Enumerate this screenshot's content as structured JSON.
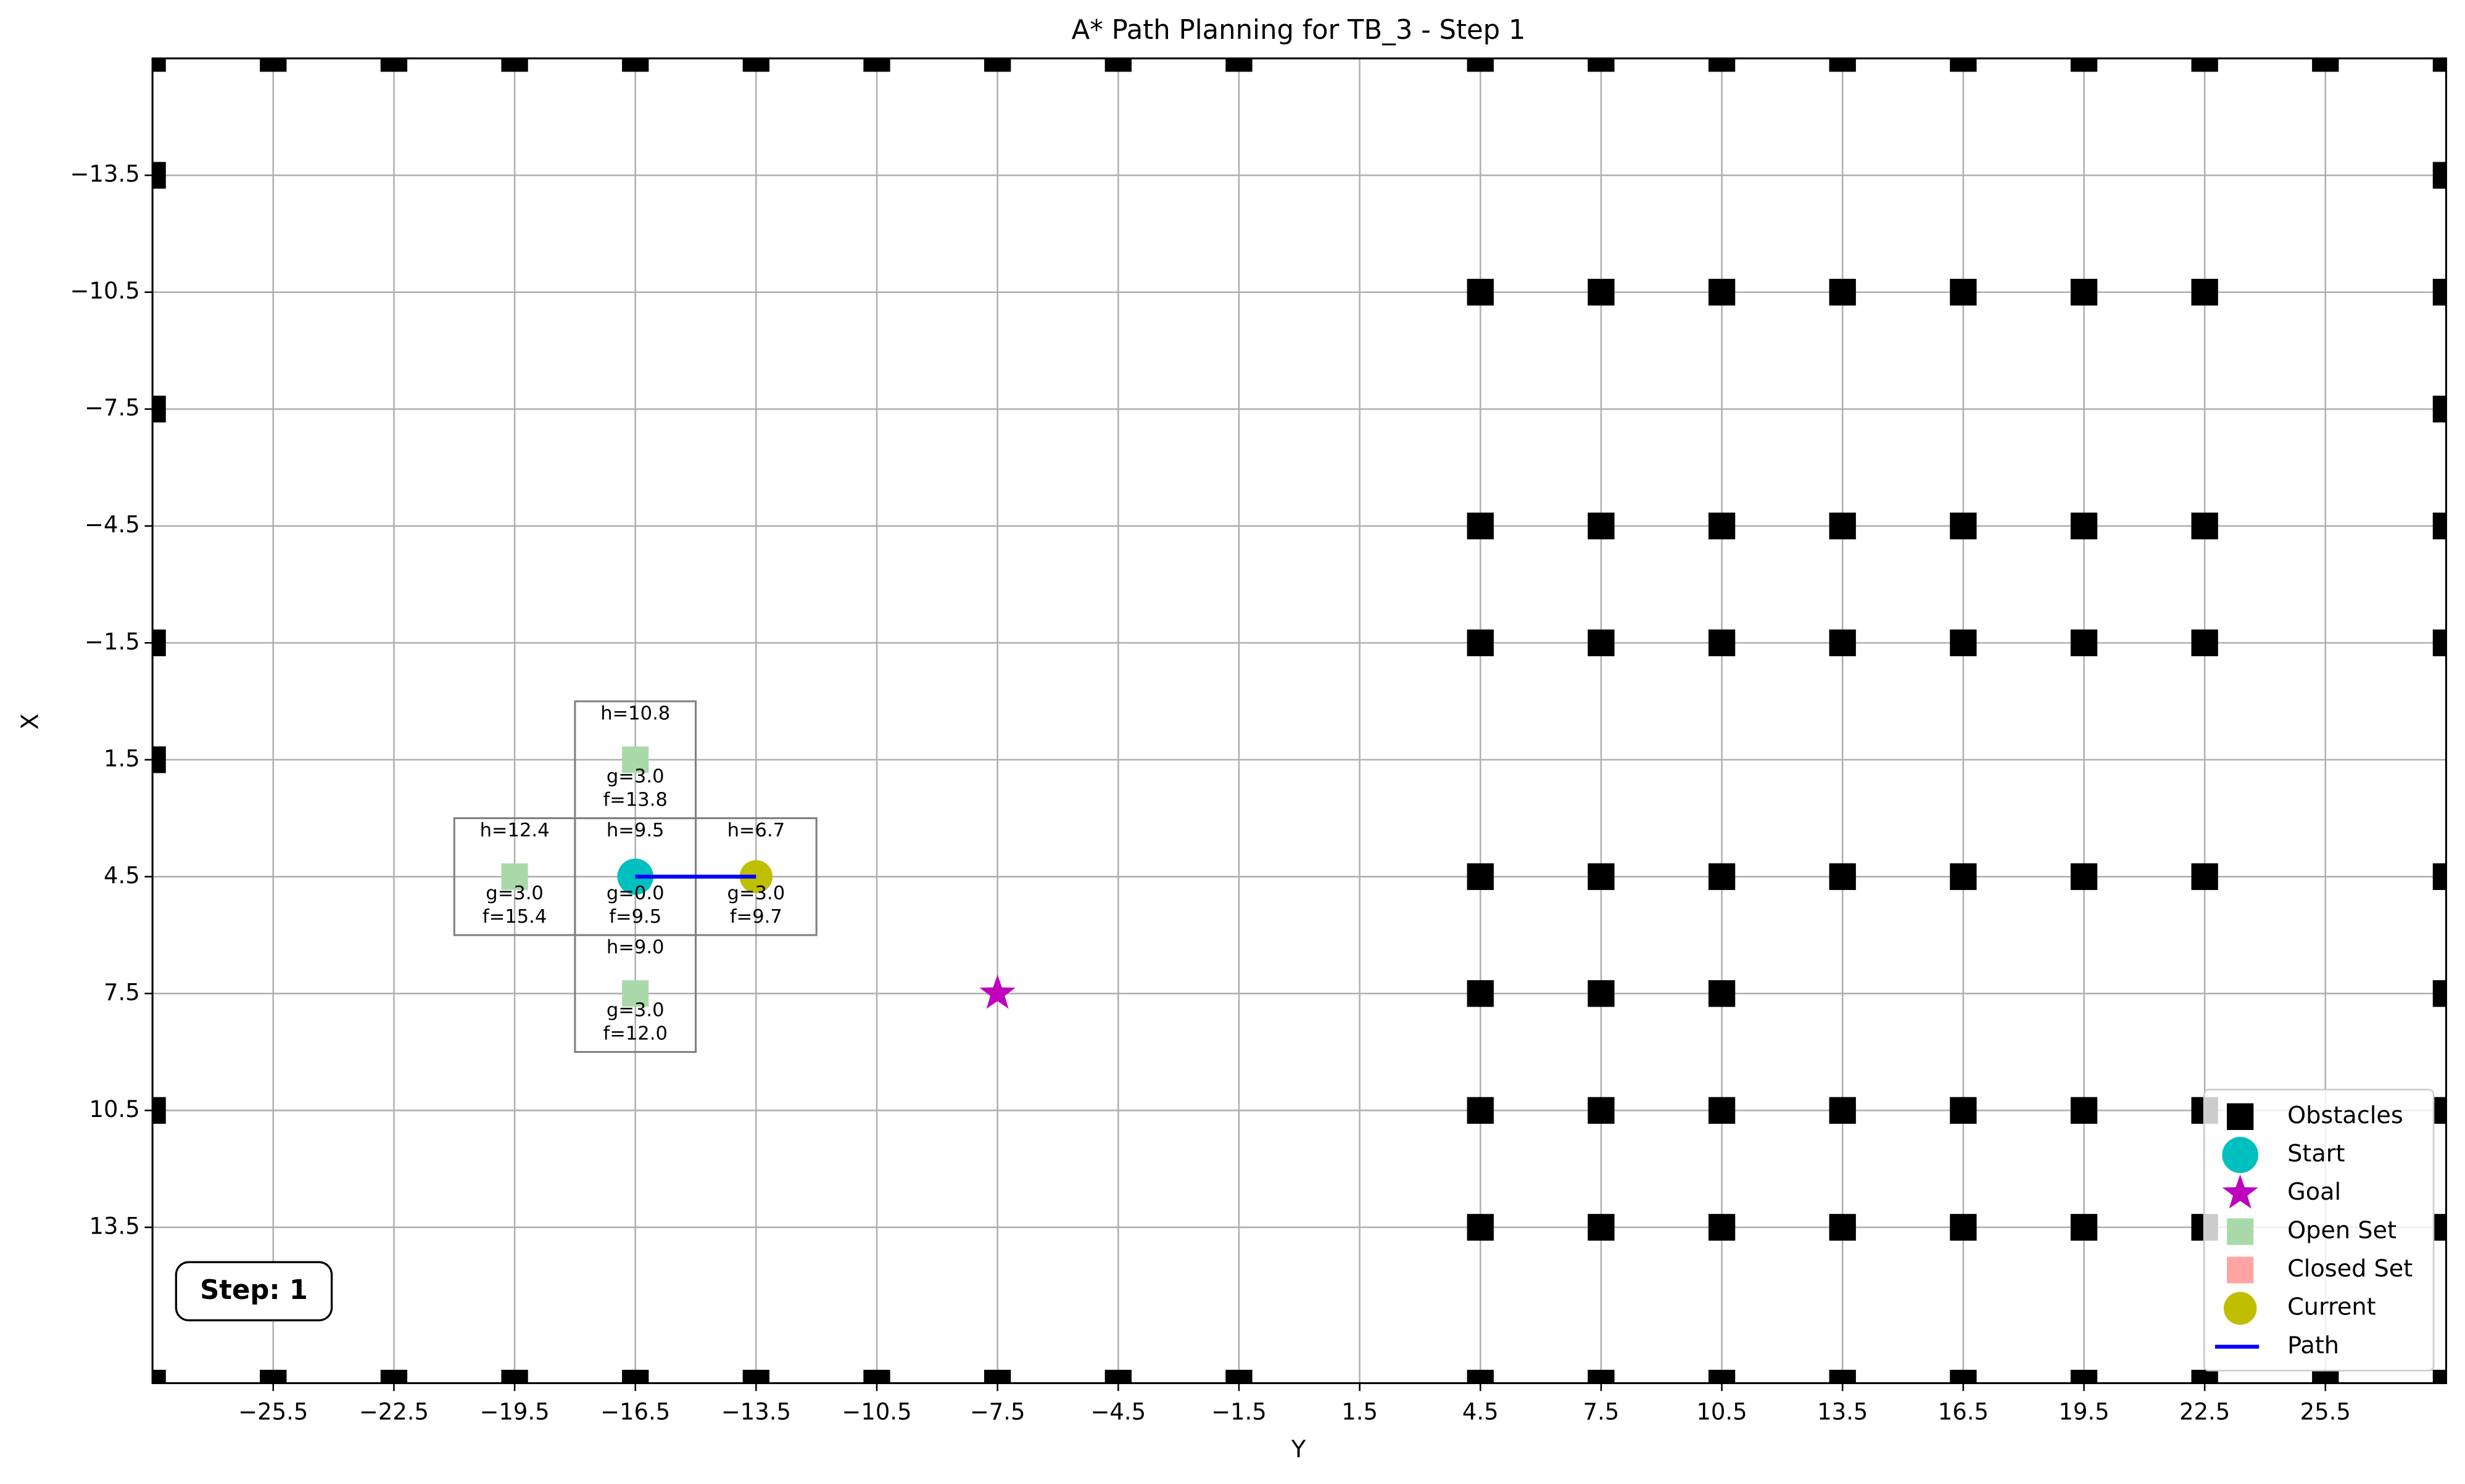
{
  "chart_data": {
    "type": "scatter",
    "title": "A* Path Planning for TB_3 - Step 1",
    "x_label": "Y",
    "y_label": "X",
    "xlim": [
      -28.5,
      28.5
    ],
    "ylim": [
      -16.5,
      17.5
    ],
    "y_inverted": true,
    "grid": true,
    "legend": "lower right",
    "xticks": [
      {
        "value": -25.5,
        "label": "−25.5"
      },
      {
        "value": -22.5,
        "label": "−22.5"
      },
      {
        "value": -19.5,
        "label": "−19.5"
      },
      {
        "value": -16.5,
        "label": "−16.5"
      },
      {
        "value": -13.5,
        "label": "−13.5"
      },
      {
        "value": -10.5,
        "label": "−10.5"
      },
      {
        "value": -7.5,
        "label": "−7.5"
      },
      {
        "value": -4.5,
        "label": "−4.5"
      },
      {
        "value": -1.5,
        "label": "−1.5"
      },
      1.5,
      4.5,
      7.5,
      10.5,
      13.5,
      16.5,
      19.5,
      22.5,
      25.5
    ],
    "yticks": [
      {
        "value": -13.5,
        "label": "−13.5"
      },
      {
        "value": -10.5,
        "label": "−10.5"
      },
      {
        "value": -7.5,
        "label": "−7.5"
      },
      {
        "value": -4.5,
        "label": "−4.5"
      },
      {
        "value": -1.5,
        "label": "−1.5"
      },
      1.5,
      4.5,
      7.5,
      10.5,
      13.5
    ],
    "series": [
      {
        "name": "Obstacles",
        "color": "#000000",
        "marker": "square",
        "x": [
          -28.5,
          -25.5,
          -22.5,
          -19.5,
          -16.5,
          -13.5,
          -10.5,
          -7.5,
          -4.5,
          -1.5,
          4.5,
          7.5,
          10.5,
          13.5,
          16.5,
          19.5,
          22.5,
          25.5,
          28.5,
          -28.5,
          -25.5,
          -22.5,
          -19.5,
          -16.5,
          -13.5,
          -10.5,
          -7.5,
          -4.5,
          -1.5,
          4.5,
          7.5,
          10.5,
          13.5,
          16.5,
          19.5,
          22.5,
          25.5,
          28.5,
          -28.5,
          -28.5,
          -28.5,
          -28.5,
          -28.5,
          28.5,
          28.5,
          28.5,
          28.5,
          28.5,
          28.5,
          28.5,
          28.5,
          28.5,
          4.5,
          7.5,
          10.5,
          13.5,
          16.5,
          19.5,
          22.5,
          4.5,
          7.5,
          10.5,
          13.5,
          16.5,
          19.5,
          22.5,
          4.5,
          7.5,
          10.5,
          13.5,
          16.5,
          19.5,
          22.5,
          4.5,
          7.5,
          10.5,
          13.5,
          16.5,
          19.5,
          22.5,
          4.5,
          7.5,
          10.5,
          13.5,
          16.5,
          19.5,
          22.5,
          4.5,
          7.5,
          10.5,
          13.5,
          16.5,
          19.5,
          22.5,
          4.5,
          7.5,
          10.5
        ],
        "y": [
          -16.5,
          -16.5,
          -16.5,
          -16.5,
          -16.5,
          -16.5,
          -16.5,
          -16.5,
          -16.5,
          -16.5,
          -16.5,
          -16.5,
          -16.5,
          -16.5,
          -16.5,
          -16.5,
          -16.5,
          -16.5,
          -16.5,
          17.5,
          17.5,
          17.5,
          17.5,
          17.5,
          17.5,
          17.5,
          17.5,
          17.5,
          17.5,
          17.5,
          17.5,
          17.5,
          17.5,
          17.5,
          17.5,
          17.5,
          17.5,
          17.5,
          -13.5,
          -7.5,
          -1.5,
          1.5,
          10.5,
          -13.5,
          -10.5,
          -7.5,
          -4.5,
          -1.5,
          4.5,
          7.5,
          10.5,
          13.5,
          -10.5,
          -10.5,
          -10.5,
          -10.5,
          -10.5,
          -10.5,
          -10.5,
          -4.5,
          -4.5,
          -4.5,
          -4.5,
          -4.5,
          -4.5,
          -4.5,
          -1.5,
          -1.5,
          -1.5,
          -1.5,
          -1.5,
          -1.5,
          -1.5,
          4.5,
          4.5,
          4.5,
          4.5,
          4.5,
          4.5,
          4.5,
          10.5,
          10.5,
          10.5,
          10.5,
          10.5,
          10.5,
          10.5,
          13.5,
          13.5,
          13.5,
          13.5,
          13.5,
          13.5,
          13.5,
          7.5,
          7.5,
          7.5
        ]
      },
      {
        "name": "Start",
        "color": "#00bfbf",
        "marker": "circle",
        "x": [
          -16.5
        ],
        "y": [
          4.5
        ]
      },
      {
        "name": "Goal",
        "color": "#bf00bf",
        "marker": "star",
        "x": [
          -7.5
        ],
        "y": [
          7.5
        ]
      },
      {
        "name": "Open Set",
        "color": "#a9d8a9",
        "marker": "square",
        "x": [
          -19.5,
          -16.5,
          -16.5
        ],
        "y": [
          4.5,
          1.5,
          7.5
        ]
      },
      {
        "name": "Closed Set",
        "color": "#ffa3a3",
        "marker": "square",
        "x": [],
        "y": []
      },
      {
        "name": "Current",
        "color": "#bfbf00",
        "marker": "circle",
        "x": [
          -13.5
        ],
        "y": [
          4.5
        ]
      },
      {
        "name": "Path",
        "color": "#0000ff",
        "marker": "line",
        "x": [
          -16.5,
          -13.5
        ],
        "y": [
          4.5,
          4.5
        ]
      }
    ],
    "cell_annotations": [
      {
        "x": -16.5,
        "y": 1.5,
        "h": "h=10.8",
        "g": "g=3.0",
        "f": "f=13.8"
      },
      {
        "x": -19.5,
        "y": 4.5,
        "h": "h=12.4",
        "g": "g=3.0",
        "f": "f=15.4"
      },
      {
        "x": -16.5,
        "y": 4.5,
        "h": "h=9.5",
        "g": "g=0.0",
        "f": "f=9.5"
      },
      {
        "x": -13.5,
        "y": 4.5,
        "h": "h=6.7",
        "g": "g=3.0",
        "f": "f=9.7"
      },
      {
        "x": -16.5,
        "y": 7.5,
        "h": "h=9.0",
        "g": "g=3.0",
        "f": "f=12.0"
      }
    ],
    "step_label": "Step: 1"
  }
}
